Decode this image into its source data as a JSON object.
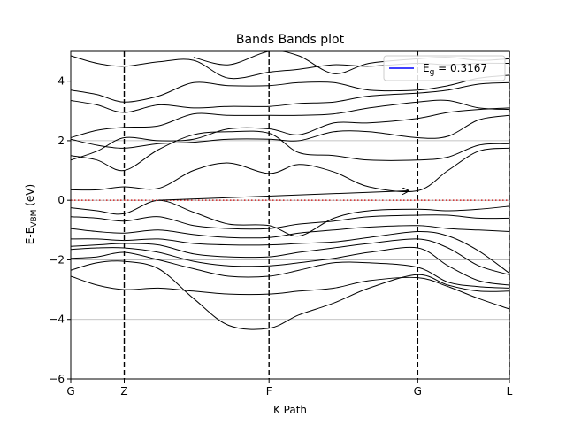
{
  "chart_data": {
    "type": "line",
    "title": "Bands Bands plot",
    "xlabel": "K Path",
    "ylabel": {
      "main": "E-E",
      "sub": "VBM",
      "unit": " (eV)"
    },
    "xlim": [
      0,
      1
    ],
    "ylim": [
      -6,
      5
    ],
    "y_ticks": [
      -6,
      -4,
      -2,
      0,
      2,
      4
    ],
    "k_points": [
      {
        "label": "G",
        "x": 0.0
      },
      {
        "label": "Z",
        "x": 0.122
      },
      {
        "label": "F",
        "x": 0.452
      },
      {
        "label": "G",
        "x": 0.791
      },
      {
        "label": "L",
        "x": 1.0
      }
    ],
    "grid": "horizontal",
    "legend": {
      "position": "top-right",
      "entry_main": "E",
      "entry_sub": "g",
      "entry_value": " = 0.3167",
      "color": "#0000ff"
    },
    "fermi_level": {
      "y": 0,
      "color": "#d62728",
      "style": "dotted"
    },
    "gap_arrow": {
      "from": [
        0.2,
        0.0
      ],
      "to": [
        0.77,
        0.3167
      ]
    },
    "band_color": "#000000",
    "x": [
      0.0,
      0.06,
      0.122,
      0.2,
      0.28,
      0.36,
      0.452,
      0.52,
      0.6,
      0.68,
      0.791,
      0.86,
      0.93,
      1.0
    ],
    "series": [
      {
        "values": [
          -2.55,
          -2.85,
          -3.0,
          -2.95,
          -3.05,
          -3.15,
          -3.15,
          -3.05,
          -2.95,
          -2.7,
          -2.6,
          -2.9,
          -3.3,
          -3.65
        ]
      },
      {
        "values": [
          -2.35,
          -2.1,
          -2.05,
          -2.3,
          -3.3,
          -4.2,
          -4.3,
          -3.85,
          -3.45,
          -2.95,
          -2.5,
          -2.85,
          -3.05,
          -3.05
        ]
      },
      {
        "values": [
          -1.95,
          -1.9,
          -1.75,
          -2.0,
          -2.3,
          -2.55,
          -2.55,
          -2.35,
          -2.1,
          -2.1,
          -2.25,
          -2.75,
          -2.9,
          -2.95
        ]
      },
      {
        "values": [
          -1.65,
          -1.6,
          -1.6,
          -1.75,
          -2.05,
          -2.2,
          -2.2,
          -2.1,
          -1.95,
          -1.75,
          -1.6,
          -2.2,
          -2.7,
          -2.85
        ]
      },
      {
        "values": [
          -1.55,
          -1.5,
          -1.45,
          -1.5,
          -1.8,
          -1.9,
          -1.9,
          -1.75,
          -1.6,
          -1.45,
          -1.3,
          -1.6,
          -2.2,
          -2.5
        ]
      },
      {
        "values": [
          -1.3,
          -1.3,
          -1.35,
          -1.3,
          -1.45,
          -1.5,
          -1.5,
          -1.45,
          -1.4,
          -1.25,
          -1.05,
          -1.2,
          -1.7,
          -2.45
        ]
      },
      {
        "values": [
          -0.95,
          -1.05,
          -1.1,
          -1.0,
          -1.15,
          -1.25,
          -1.25,
          -1.1,
          -1.0,
          -0.9,
          -0.85,
          -0.95,
          -1.0,
          -1.05
        ]
      },
      {
        "values": [
          -0.55,
          -0.6,
          -0.7,
          -0.55,
          -0.85,
          -0.95,
          -0.95,
          -0.8,
          -0.7,
          -0.55,
          -0.5,
          -0.5,
          -0.6,
          -0.6
        ]
      },
      {
        "values": [
          -0.25,
          -0.35,
          -0.45,
          0.0,
          -0.4,
          -0.8,
          -0.85,
          -1.2,
          -0.6,
          -0.35,
          -0.3,
          -0.35,
          -0.3,
          -0.2
        ]
      },
      {
        "values": [
          0.35,
          0.35,
          0.45,
          0.4,
          1.0,
          1.25,
          0.9,
          1.2,
          0.95,
          0.45,
          0.32,
          1.0,
          1.65,
          1.75
        ]
      },
      {
        "values": [
          1.5,
          1.35,
          1.0,
          1.7,
          2.2,
          2.3,
          2.25,
          1.6,
          1.5,
          1.35,
          1.35,
          1.45,
          1.85,
          1.9
        ]
      },
      {
        "values": [
          2.05,
          1.85,
          1.75,
          1.9,
          1.95,
          2.05,
          2.05,
          2.0,
          2.3,
          2.3,
          2.1,
          2.15,
          2.7,
          2.85
        ]
      },
      {
        "values": [
          1.35,
          1.65,
          2.1,
          2.0,
          2.05,
          2.4,
          2.4,
          2.2,
          2.6,
          2.6,
          2.75,
          2.95,
          3.05,
          3.1
        ]
      },
      {
        "values": [
          2.1,
          2.35,
          2.45,
          2.5,
          2.9,
          2.85,
          2.85,
          2.85,
          2.9,
          3.1,
          3.3,
          3.35,
          3.1,
          3.05
        ]
      },
      {
        "values": [
          3.35,
          3.2,
          2.95,
          3.2,
          3.1,
          3.15,
          3.15,
          3.25,
          3.3,
          3.5,
          3.6,
          3.7,
          3.9,
          3.95
        ]
      },
      {
        "values": [
          3.7,
          3.55,
          3.3,
          3.5,
          3.95,
          3.85,
          3.85,
          3.95,
          3.95,
          3.7,
          3.7,
          3.85,
          4.1,
          4.2
        ]
      },
      {
        "values": [
          4.85,
          4.6,
          4.5,
          4.65,
          4.7,
          4.1,
          4.3,
          4.4,
          4.55,
          4.5,
          4.6,
          4.55,
          4.6,
          4.6
        ]
      },
      {
        "values": [
          null,
          null,
          null,
          null,
          4.8,
          4.55,
          5.0,
          4.85,
          4.25,
          4.6,
          4.75,
          4.8,
          4.7,
          4.75
        ]
      }
    ]
  }
}
